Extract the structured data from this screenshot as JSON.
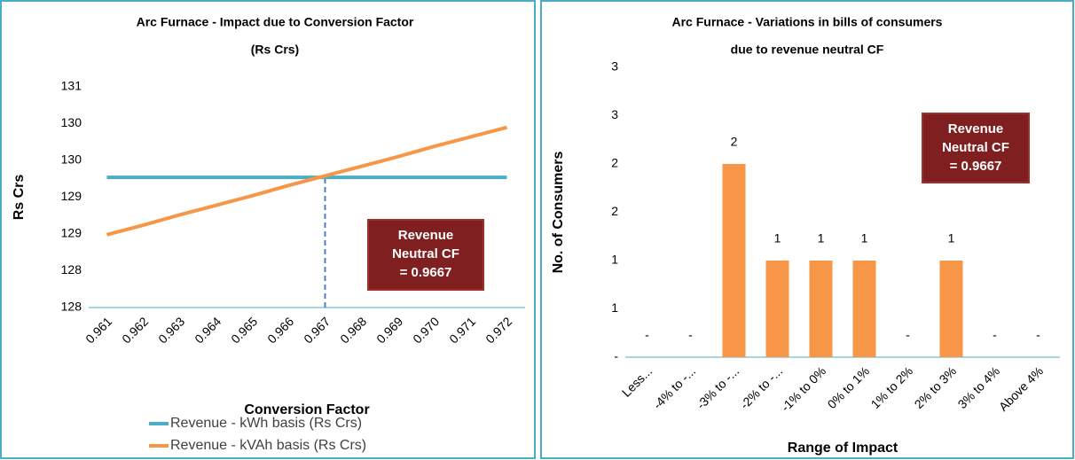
{
  "chart_data": [
    {
      "type": "line",
      "title": "Arc Furnace - Impact due to Conversion Factor",
      "subtitle": "(Rs Crs)",
      "x_label": "Conversion Factor",
      "y_label": "Rs Crs",
      "categories": [
        "0.961",
        "0.962",
        "0.963",
        "0.964",
        "0.965",
        "0.966",
        "0.967",
        "0.968",
        "0.969",
        "0.970",
        "0.971",
        "0.972"
      ],
      "series": [
        {
          "name": "Revenue - kWh basis (Rs Crs)",
          "color": "#4bacc6",
          "values": [
            129.27,
            129.27,
            129.27,
            129.27,
            129.27,
            129.27,
            129.27,
            129.27,
            129.27,
            129.27,
            129.27,
            129.27
          ]
        },
        {
          "name": "Revenue - kVAh basis (Rs Crs)",
          "color": "#f79646",
          "values": [
            128.49,
            128.62,
            128.76,
            128.89,
            129.02,
            129.16,
            129.29,
            129.42,
            129.55,
            129.69,
            129.82,
            129.95
          ]
        }
      ],
      "ylim": [
        127.5,
        130.5
      ],
      "yticks": [
        {
          "value": 127.5,
          "label": "128"
        },
        128,
        {
          "value": 128.5,
          "label": "129"
        },
        129,
        {
          "value": 129.5,
          "label": "130"
        },
        130,
        {
          "value": 130.5,
          "label": "131"
        }
      ],
      "annotation": "Revenue Neutral CF = 0.9667",
      "annotation_category": "0.967",
      "legend": "bottom",
      "grid": false
    },
    {
      "type": "bar",
      "title": "Arc Furnace - Variations in bills of consumers",
      "subtitle": "due to revenue neutral CF",
      "x_label": "Range of Impact",
      "y_label": "No. of Consumers",
      "categories": [
        "Less...",
        "-4% to -...",
        "-3% to -...",
        "-2% to -...",
        "-1% to 0%",
        "0% to 1%",
        "1% to 2%",
        "2% to 3%",
        "3% to 4%",
        "Above 4%"
      ],
      "values": [
        0,
        0,
        2,
        1,
        1,
        1,
        0,
        1,
        0,
        0
      ],
      "value_labels": [
        "-",
        "-",
        "2",
        "1",
        "1",
        "1",
        "-",
        "1",
        "-",
        "-"
      ],
      "color": "#f79646",
      "ylim": [
        0,
        3
      ],
      "yticks": [
        {
          "value": 0,
          "label": "-"
        },
        {
          "value": 0.5,
          "label": "1"
        },
        1,
        {
          "value": 1.5,
          "label": "2"
        },
        2,
        {
          "value": 2.5,
          "label": "3"
        },
        3
      ],
      "annotation": "Revenue Neutral CF = 0.9667",
      "grid": false
    }
  ]
}
